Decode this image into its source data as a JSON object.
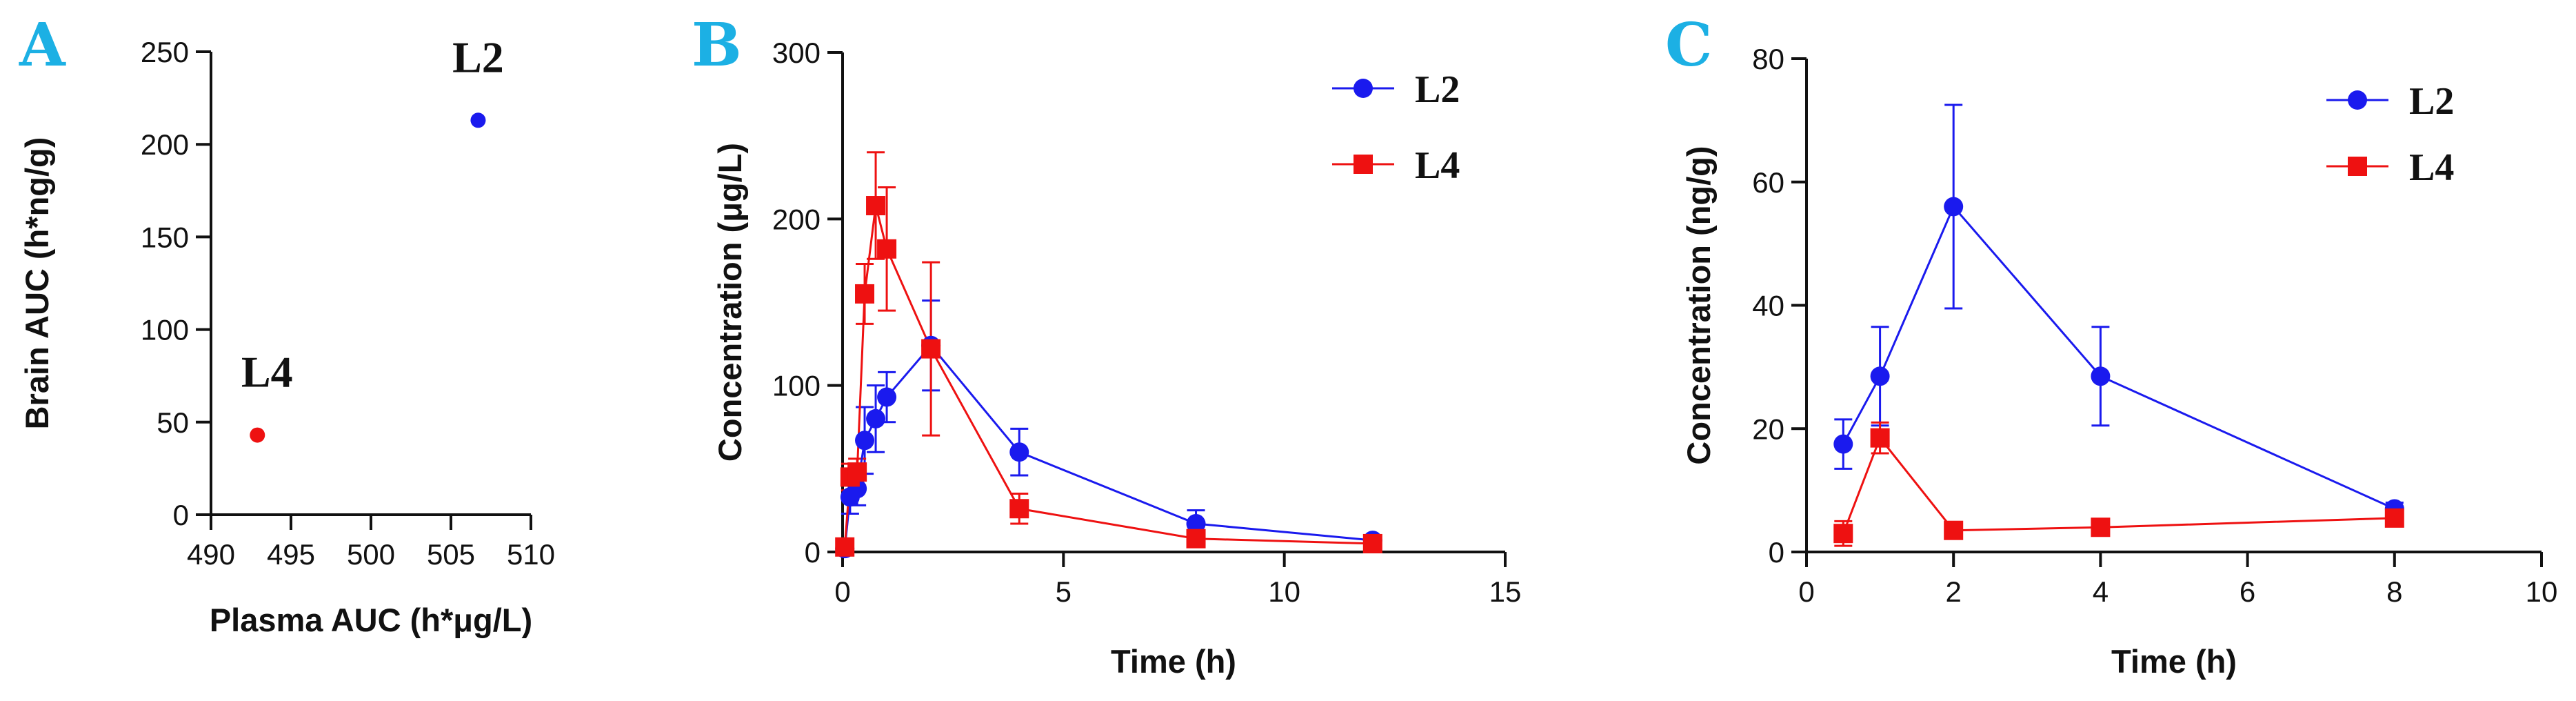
{
  "colors": {
    "L2": "#1a1aee",
    "L4": "#ee1111",
    "panel_letter": "#1cb0e4",
    "axis": "#111111"
  },
  "chart_data": [
    {
      "panel": "A",
      "type": "scatter",
      "xlabel": "Plasma AUC (h*μg/L)",
      "ylabel": "Brain AUC (h*ng/g)",
      "xlim": [
        490,
        510
      ],
      "ylim": [
        0,
        250
      ],
      "xticks": [
        490,
        495,
        500,
        505,
        510
      ],
      "yticks": [
        0,
        50,
        100,
        150,
        200,
        250
      ],
      "grid": false,
      "series": [
        {
          "name": "L2",
          "x": [
            506.7
          ],
          "y": [
            213
          ],
          "label": "L2"
        },
        {
          "name": "L4",
          "x": [
            492.9
          ],
          "y": [
            43
          ],
          "label": "L4"
        }
      ]
    },
    {
      "panel": "B",
      "type": "line",
      "xlabel": "Time (h)",
      "ylabel": "Concentration (μg/L)",
      "xlim": [
        0,
        15
      ],
      "ylim": [
        0,
        300
      ],
      "xticks": [
        0,
        5,
        10,
        15
      ],
      "yticks": [
        0,
        100,
        200,
        300
      ],
      "grid": false,
      "legend": "top-right",
      "series": [
        {
          "name": "L2",
          "marker": "circle",
          "x": [
            0.05,
            0.17,
            0.33,
            0.5,
            0.75,
            1,
            2,
            4,
            8,
            12
          ],
          "y": [
            2,
            33,
            38,
            67,
            80,
            93,
            124,
            60,
            17,
            7
          ],
          "err": [
            2,
            10,
            10,
            20,
            20,
            15,
            27,
            14,
            8,
            3
          ]
        },
        {
          "name": "L4",
          "marker": "square",
          "x": [
            0.05,
            0.17,
            0.33,
            0.5,
            0.75,
            1,
            2,
            4,
            8,
            12
          ],
          "y": [
            3,
            45,
            48,
            155,
            208,
            182,
            122,
            26,
            8,
            5
          ],
          "err": [
            2,
            8,
            8,
            18,
            32,
            37,
            52,
            9,
            4,
            2
          ]
        }
      ]
    },
    {
      "panel": "C",
      "type": "line",
      "xlabel": "Time (h)",
      "ylabel": "Concentration (ng/g)",
      "xlim": [
        0,
        10
      ],
      "ylim": [
        0,
        80
      ],
      "xticks": [
        0,
        2,
        4,
        6,
        8,
        10
      ],
      "yticks": [
        0,
        20,
        40,
        60,
        80
      ],
      "grid": false,
      "legend": "top-right",
      "series": [
        {
          "name": "L2",
          "marker": "circle",
          "x": [
            0.5,
            1,
            2,
            4,
            8
          ],
          "y": [
            17.5,
            28.5,
            56,
            28.5,
            7
          ],
          "err": [
            4,
            8,
            16.5,
            8,
            1
          ]
        },
        {
          "name": "L4",
          "marker": "square",
          "x": [
            0.5,
            1,
            2,
            4,
            8
          ],
          "y": [
            3,
            18.5,
            3.5,
            4,
            5.5
          ],
          "err": [
            2,
            2.5,
            0.5,
            0.5,
            0.5
          ]
        }
      ]
    }
  ]
}
